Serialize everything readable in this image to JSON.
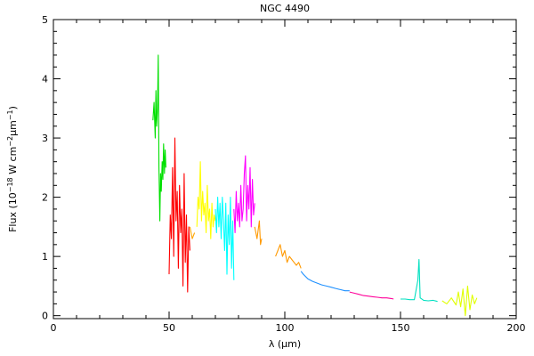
{
  "chart_data": {
    "type": "line",
    "title": "NGC 4490",
    "xlabel": "λ (μm)",
    "ylabel": {
      "prefix": "Flux (10",
      "exp1": "−18",
      "mid1": " W cm",
      "exp2": "−2",
      "mid2": "μm",
      "exp3": "−1",
      "suffix": ")"
    },
    "xlim": [
      0,
      200
    ],
    "ylim": [
      -0.05,
      5
    ],
    "xticks": [
      0,
      50,
      100,
      150,
      200
    ],
    "yticks": [
      0,
      1,
      2,
      3,
      4,
      5
    ],
    "grid": false,
    "series": [
      {
        "color": "#00e000",
        "x": [
          43.0,
          43.5,
          44.0,
          44.3,
          44.6,
          45.0,
          45.3,
          45.6,
          46.0,
          46.3,
          46.6,
          47.0,
          47.3,
          47.6,
          48.0,
          48.3,
          48.6
        ],
        "y": [
          3.3,
          3.6,
          3.0,
          3.8,
          3.2,
          3.5,
          4.4,
          2.5,
          1.6,
          2.4,
          2.1,
          2.6,
          2.3,
          2.9,
          2.4,
          2.8,
          2.5
        ]
      },
      {
        "color": "#ff0000",
        "x": [
          50.0,
          50.5,
          51.0,
          51.5,
          52.0,
          52.5,
          53.0,
          53.5,
          54.0,
          54.5,
          55.0,
          55.5,
          56.0,
          56.5,
          57.0,
          57.5,
          58.0,
          58.5,
          59.0
        ],
        "y": [
          0.7,
          1.7,
          1.3,
          2.5,
          1.0,
          3.0,
          1.6,
          2.1,
          0.8,
          2.2,
          1.4,
          1.8,
          0.5,
          2.4,
          0.9,
          1.7,
          0.4,
          1.5,
          1.1
        ]
      },
      {
        "color": "#ffa500",
        "x": [
          59.0,
          60.0,
          61.0
        ],
        "y": [
          1.5,
          1.3,
          1.4
        ]
      },
      {
        "color": "#ffff00",
        "x": [
          62.0,
          62.5,
          63.0,
          63.5,
          64.0,
          64.5,
          65.0,
          65.5,
          66.0,
          66.5,
          67.0,
          67.5,
          68.0,
          68.5,
          69.0,
          69.5,
          70.0
        ],
        "y": [
          1.5,
          2.0,
          1.8,
          2.6,
          1.6,
          2.1,
          1.7,
          1.9,
          1.4,
          2.2,
          1.6,
          1.8,
          1.3,
          1.9,
          1.5,
          1.7,
          1.6
        ]
      },
      {
        "color": "#00ffff",
        "x": [
          70.0,
          70.5,
          71.0,
          71.5,
          72.0,
          72.5,
          73.0,
          73.5,
          74.0,
          74.5,
          75.0,
          75.5,
          76.0,
          76.5,
          77.0,
          77.5,
          78.0
        ],
        "y": [
          1.8,
          1.4,
          2.0,
          1.5,
          1.9,
          1.3,
          2.0,
          1.6,
          1.1,
          1.9,
          0.7,
          1.7,
          1.2,
          2.0,
          0.8,
          1.6,
          0.6
        ]
      },
      {
        "color": "#ff00ff",
        "x": [
          78.0,
          78.5,
          79.0,
          79.5,
          80.0,
          80.5,
          81.0,
          81.5,
          82.0,
          82.5,
          83.0,
          83.5,
          84.0,
          84.5,
          85.0,
          85.5,
          86.0,
          86.5,
          87.0
        ],
        "y": [
          1.8,
          1.4,
          2.1,
          1.6,
          1.9,
          1.5,
          2.2,
          1.6,
          1.8,
          2.4,
          2.7,
          1.6,
          2.2,
          1.8,
          2.5,
          1.5,
          2.3,
          1.7,
          1.9
        ]
      },
      {
        "color": "#ff9900",
        "x": [
          87.0,
          88.0,
          89.0,
          89.5,
          90.0
        ],
        "y": [
          1.5,
          1.3,
          1.6,
          1.2,
          1.3
        ]
      },
      {
        "color": "#ff9900",
        "x": [
          96.0,
          97.0,
          98.0,
          99.0,
          100.0,
          101.0,
          102.0,
          103.0,
          104.0,
          105.0,
          106.0,
          107.0
        ],
        "y": [
          1.0,
          1.1,
          1.2,
          1.0,
          1.1,
          0.9,
          1.0,
          0.95,
          0.9,
          0.85,
          0.9,
          0.8
        ]
      },
      {
        "color": "#1e90ff",
        "x": [
          107.0,
          108.0,
          110.0,
          112.0,
          114.0,
          116.0,
          118.0,
          120.0,
          122.0,
          124.0,
          126.0,
          128.0
        ],
        "y": [
          0.75,
          0.7,
          0.62,
          0.58,
          0.55,
          0.52,
          0.5,
          0.48,
          0.46,
          0.44,
          0.42,
          0.42
        ]
      },
      {
        "color": "#ff0099",
        "x": [
          128.0,
          130.0,
          132.0,
          134.0,
          136.0,
          138.0,
          140.0,
          142.0,
          144.0,
          146.0,
          147.0
        ],
        "y": [
          0.4,
          0.38,
          0.36,
          0.34,
          0.33,
          0.32,
          0.31,
          0.3,
          0.3,
          0.29,
          0.28
        ]
      },
      {
        "color": "#00e0c0",
        "x": [
          150.0,
          152.0,
          154.0,
          156.0,
          157.5,
          158.0,
          158.5,
          160.0,
          162.0,
          164.0,
          166.0
        ],
        "y": [
          0.28,
          0.28,
          0.27,
          0.27,
          0.6,
          0.95,
          0.3,
          0.26,
          0.25,
          0.26,
          0.24
        ]
      },
      {
        "color": "#e0ff00",
        "x": [
          168.0,
          170.0,
          172.0,
          174.0,
          175.0,
          176.0,
          177.0,
          178.0,
          179.0,
          180.0,
          181.0,
          182.0,
          183.0
        ],
        "y": [
          0.25,
          0.2,
          0.3,
          0.18,
          0.4,
          0.15,
          0.45,
          0.0,
          0.5,
          0.1,
          0.35,
          0.2,
          0.3
        ]
      }
    ]
  }
}
